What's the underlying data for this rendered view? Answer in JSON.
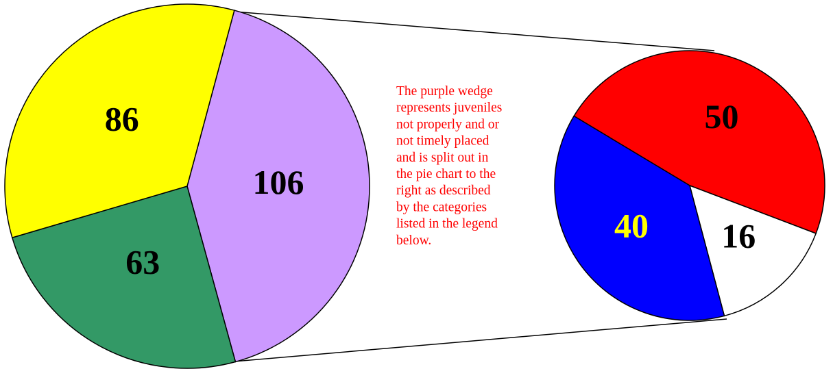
{
  "chart_data": [
    {
      "type": "pie",
      "values": [
        106,
        63,
        86
      ],
      "colors": [
        "#cc99ff",
        "#339966",
        "#ffff00"
      ],
      "label_colors": [
        "#000000",
        "#000000",
        "#000000"
      ]
    },
    {
      "type": "pie",
      "values": [
        50,
        16,
        40
      ],
      "colors": [
        "#ff0000",
        "#ffffff",
        "#0000ff"
      ],
      "label_colors": [
        "#000000",
        "#000000",
        "#ffff00"
      ]
    }
  ],
  "annotation": [
    "The purple wedge",
    "represents juveniles",
    "not properly and or",
    "not timely placed",
    "and is split out in",
    "the pie chart to the",
    "right as described",
    "by  the categories",
    "listed in the legend",
    "below."
  ]
}
